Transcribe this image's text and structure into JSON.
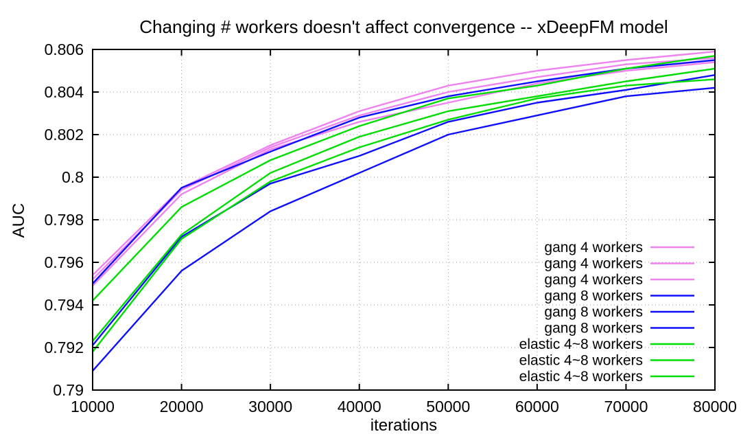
{
  "chart_data": {
    "type": "line",
    "title": "Changing # workers doesn't affect convergence -- xDeepFM model",
    "xlabel": "iterations",
    "ylabel": "AUC",
    "xlim": [
      10000,
      80000
    ],
    "ylim": [
      0.79,
      0.806
    ],
    "x_ticks": [
      10000,
      20000,
      30000,
      40000,
      50000,
      60000,
      70000,
      80000
    ],
    "x_tick_labels": [
      "10000",
      "20000",
      "30000",
      "40000",
      "50000",
      "60000",
      "70000",
      "80000"
    ],
    "y_ticks": [
      0.79,
      0.792,
      0.794,
      0.796,
      0.798,
      0.8,
      0.802,
      0.804,
      0.806
    ],
    "y_tick_labels": [
      "0.79",
      "0.792",
      "0.794",
      "0.796",
      "0.798",
      "0.8",
      "0.802",
      "0.804",
      "0.806"
    ],
    "grid": true,
    "legend_position": "right-inside",
    "x": [
      10000,
      20000,
      30000,
      40000,
      50000,
      60000,
      70000,
      80000
    ],
    "series": [
      {
        "name": "gang 4 workers",
        "color": "#ee82ee",
        "values": [
          0.7954,
          0.7995,
          0.8015,
          0.8031,
          0.8043,
          0.805,
          0.8055,
          0.8059
        ]
      },
      {
        "name": "gang 4 workers",
        "color": "#ee82ee",
        "values": [
          0.7952,
          0.7994,
          0.8014,
          0.8029,
          0.804,
          0.8047,
          0.8053,
          0.8056
        ]
      },
      {
        "name": "gang 4 workers",
        "color": "#ee82ee",
        "values": [
          0.7949,
          0.7992,
          0.8013,
          0.8026,
          0.8035,
          0.8044,
          0.805,
          0.8054
        ]
      },
      {
        "name": "gang 8 workers",
        "color": "#0f0fff",
        "values": [
          0.795,
          0.7995,
          0.8012,
          0.8028,
          0.8038,
          0.8045,
          0.8051,
          0.8055
        ]
      },
      {
        "name": "gang 8 workers",
        "color": "#0f0fff",
        "values": [
          0.7921,
          0.7972,
          0.7997,
          0.801,
          0.8026,
          0.8035,
          0.8041,
          0.8048
        ]
      },
      {
        "name": "gang 8 workers",
        "color": "#0f0fff",
        "values": [
          0.7909,
          0.7956,
          0.7984,
          0.8002,
          0.802,
          0.8029,
          0.8038,
          0.8042
        ]
      },
      {
        "name": "elastic 4~8 workers",
        "color": "#00dd00",
        "values": [
          0.7942,
          0.7986,
          0.8008,
          0.8024,
          0.8037,
          0.8043,
          0.8051,
          0.8057
        ]
      },
      {
        "name": "elastic 4~8 workers",
        "color": "#00dd00",
        "values": [
          0.7923,
          0.7973,
          0.8002,
          0.8019,
          0.8031,
          0.8038,
          0.8045,
          0.8051
        ]
      },
      {
        "name": "elastic 4~8 workers",
        "color": "#00dd00",
        "values": [
          0.7918,
          0.7971,
          0.7998,
          0.8014,
          0.8027,
          0.8037,
          0.8043,
          0.8046
        ]
      }
    ],
    "colors": {
      "axis": "#000000",
      "grid": "#999999",
      "background": "#ffffff"
    }
  }
}
